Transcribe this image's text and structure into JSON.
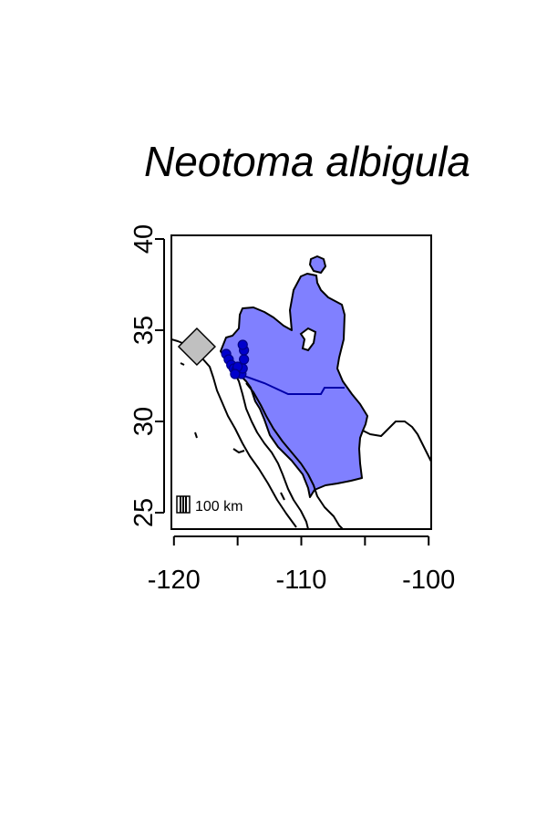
{
  "title": "Neotoma albigula",
  "map": {
    "x_axis": {
      "ticks": [
        "-120",
        "-110",
        "-100"
      ],
      "values": [
        -120,
        -110,
        -100
      ],
      "range": [
        -120.2,
        -99.8
      ]
    },
    "y_axis": {
      "ticks": [
        "25",
        "30",
        "35",
        "40"
      ],
      "values": [
        25,
        30,
        35,
        40
      ],
      "range": [
        24.1,
        40.2
      ]
    },
    "scale_bar_label": "100 km",
    "colors": {
      "range_fill": "#8080ff",
      "occurrence_points": "#0000cc",
      "border_line": "#0000aa",
      "marker_fill": "#c0c0c0"
    },
    "marker": {
      "shape": "diamond",
      "lon": -118.2,
      "lat": 34.1
    },
    "occurrences": [
      {
        "lon": -115.9,
        "lat": 33.7
      },
      {
        "lon": -115.7,
        "lat": 33.4
      },
      {
        "lon": -115.5,
        "lat": 33.1
      },
      {
        "lon": -115.3,
        "lat": 32.9
      },
      {
        "lon": -115.1,
        "lat": 32.8
      },
      {
        "lon": -114.9,
        "lat": 32.7
      },
      {
        "lon": -114.7,
        "lat": 32.6
      },
      {
        "lon": -114.6,
        "lat": 32.9
      },
      {
        "lon": -114.5,
        "lat": 33.4
      },
      {
        "lon": -114.5,
        "lat": 33.9
      },
      {
        "lon": -114.6,
        "lat": 34.2
      },
      {
        "lon": -115.0,
        "lat": 33.0
      },
      {
        "lon": -115.2,
        "lat": 32.6
      }
    ]
  }
}
